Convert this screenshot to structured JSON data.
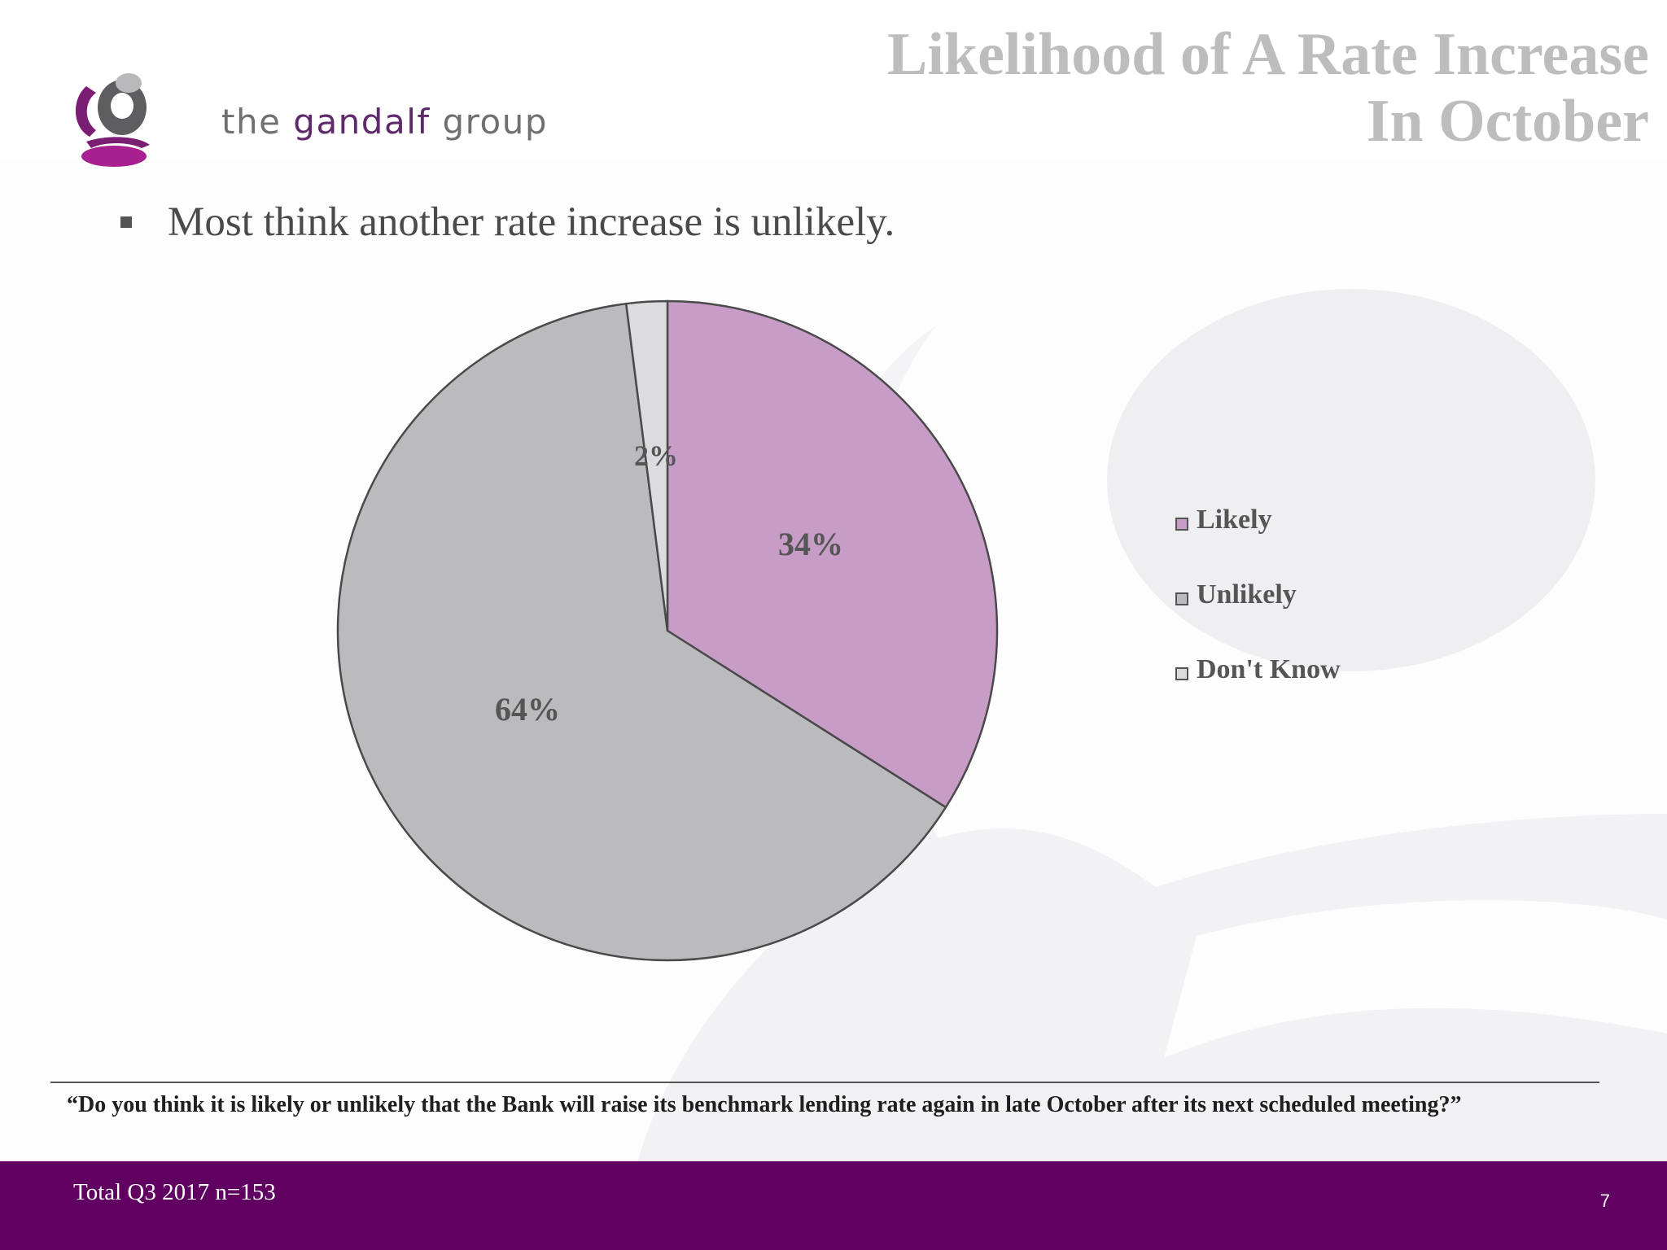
{
  "header": {
    "logo_text_prefix": "the ",
    "logo_text_accent": "gandalf",
    "logo_text_suffix": " group",
    "title_line1": "Likelihood of A Rate Increase",
    "title_line2": "In October"
  },
  "bullet": "Most think another rate increase is unlikely.",
  "chart_data": {
    "type": "pie",
    "categories": [
      "Likely",
      "Unlikely",
      "Don't Know"
    ],
    "values": [
      34,
      64,
      2
    ],
    "labels": [
      "34%",
      "64%",
      "2%"
    ],
    "colors": [
      "#c79dc7",
      "#bbbabd",
      "#dcdbde"
    ],
    "start": "12 o'clock",
    "direction": "clockwise",
    "legend_position": "right"
  },
  "question": "“Do you think it is likely or unlikely that the Bank will raise its benchmark lending rate again in late October after its next scheduled meeting?”",
  "footer": {
    "note": "Total Q3 2017 n=153",
    "page_number": "7"
  },
  "colors": {
    "footer_bg": "#600060",
    "title": "#bdbdbd",
    "brand": "#5e2a6b"
  }
}
